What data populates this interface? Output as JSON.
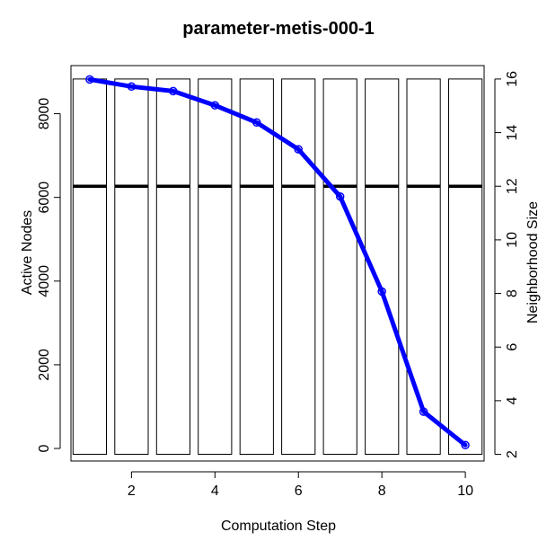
{
  "chart_data": {
    "type": "bar",
    "title": "parameter-metis-000-1",
    "xlabel": "Computation Step",
    "ylabel_left": "Active Nodes",
    "ylabel_right": "Neighborhood Size",
    "xlim": [
      0.55,
      10.45
    ],
    "ylim_left": [
      -300,
      9150
    ],
    "ylim_right": [
      1.75,
      16.5
    ],
    "x_ticks": [
      2,
      4,
      6,
      8,
      10
    ],
    "y_left_ticks": [
      0,
      2000,
      4000,
      6000,
      8000
    ],
    "y_right_ticks": [
      2,
      4,
      6,
      8,
      10,
      12,
      14,
      16
    ],
    "box_series": {
      "name": "Neighborhood Size",
      "axis": "right",
      "x": [
        1,
        2,
        3,
        4,
        5,
        6,
        7,
        8,
        9,
        10
      ],
      "min": [
        2,
        2,
        2,
        2,
        2,
        2,
        2,
        2,
        2,
        2
      ],
      "median": [
        12,
        12,
        12,
        12,
        12,
        12,
        12,
        12,
        12,
        12
      ],
      "max": [
        16,
        16,
        16,
        16,
        16,
        16,
        16,
        16,
        16,
        16
      ]
    },
    "line_series": {
      "name": "Active Nodes",
      "axis": "left",
      "x": [
        1,
        2,
        3,
        4,
        5,
        6,
        7,
        8,
        9,
        10
      ],
      "values": [
        8820,
        8650,
        8540,
        8200,
        7790,
        7150,
        6020,
        3750,
        880,
        80
      ]
    },
    "colors": {
      "line": "#0000ff",
      "axes": "#000000",
      "ylabel_left": "#0000ff"
    }
  }
}
